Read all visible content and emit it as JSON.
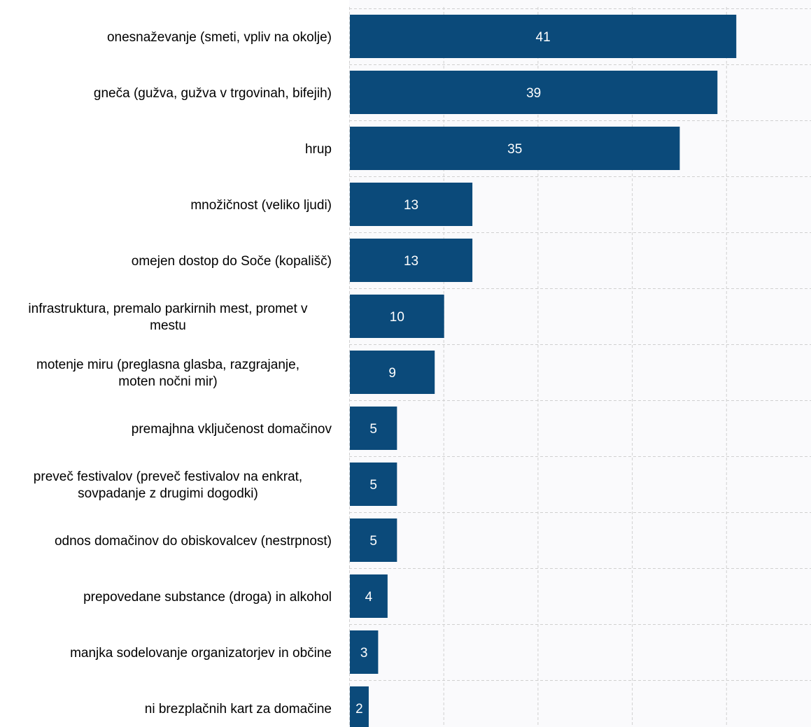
{
  "chart_data": {
    "type": "bar",
    "orientation": "horizontal",
    "categories": [
      [
        "onesnaževanje (smeti, vpliv na okolje)"
      ],
      [
        "gneča (gužva, gužva v trgovinah, bifejih)"
      ],
      [
        "hrup"
      ],
      [
        "množičnost (veliko ljudi)"
      ],
      [
        "omejen dostop do Soče (kopališč)"
      ],
      [
        "infrastruktura, premalo parkirnih mest, promet v",
        "mestu"
      ],
      [
        "motenje miru (preglasna glasba, razgrajanje,",
        "moten nočni mir)"
      ],
      [
        "premajhna vključenost domačinov"
      ],
      [
        "preveč festivalov (preveč festivalov na enkrat,",
        "sovpadanje z drugimi dogodki)"
      ],
      [
        "odnos domačinov do obiskovalcev (nestrpnost)"
      ],
      [
        "prepovedane substance (droga) in alkohol"
      ],
      [
        "manjka sodelovanje organizatorjev in občine"
      ],
      [
        "ni brezplačnih kart za domačine"
      ]
    ],
    "values": [
      41,
      39,
      35,
      13,
      13,
      10,
      9,
      5,
      5,
      5,
      4,
      3,
      2
    ],
    "data_labels": [
      "41",
      "39",
      "35",
      "13",
      "13",
      "10",
      "9",
      "5",
      "5",
      "5",
      "4",
      "3",
      "2"
    ],
    "title": "",
    "xlabel": "",
    "ylabel": "",
    "xlim": [
      0,
      49
    ],
    "grid": true,
    "legend": "none",
    "bar_color": "#0b4a7a",
    "grid_color": "#d0d0d0",
    "plot_background": "#fafafc"
  }
}
